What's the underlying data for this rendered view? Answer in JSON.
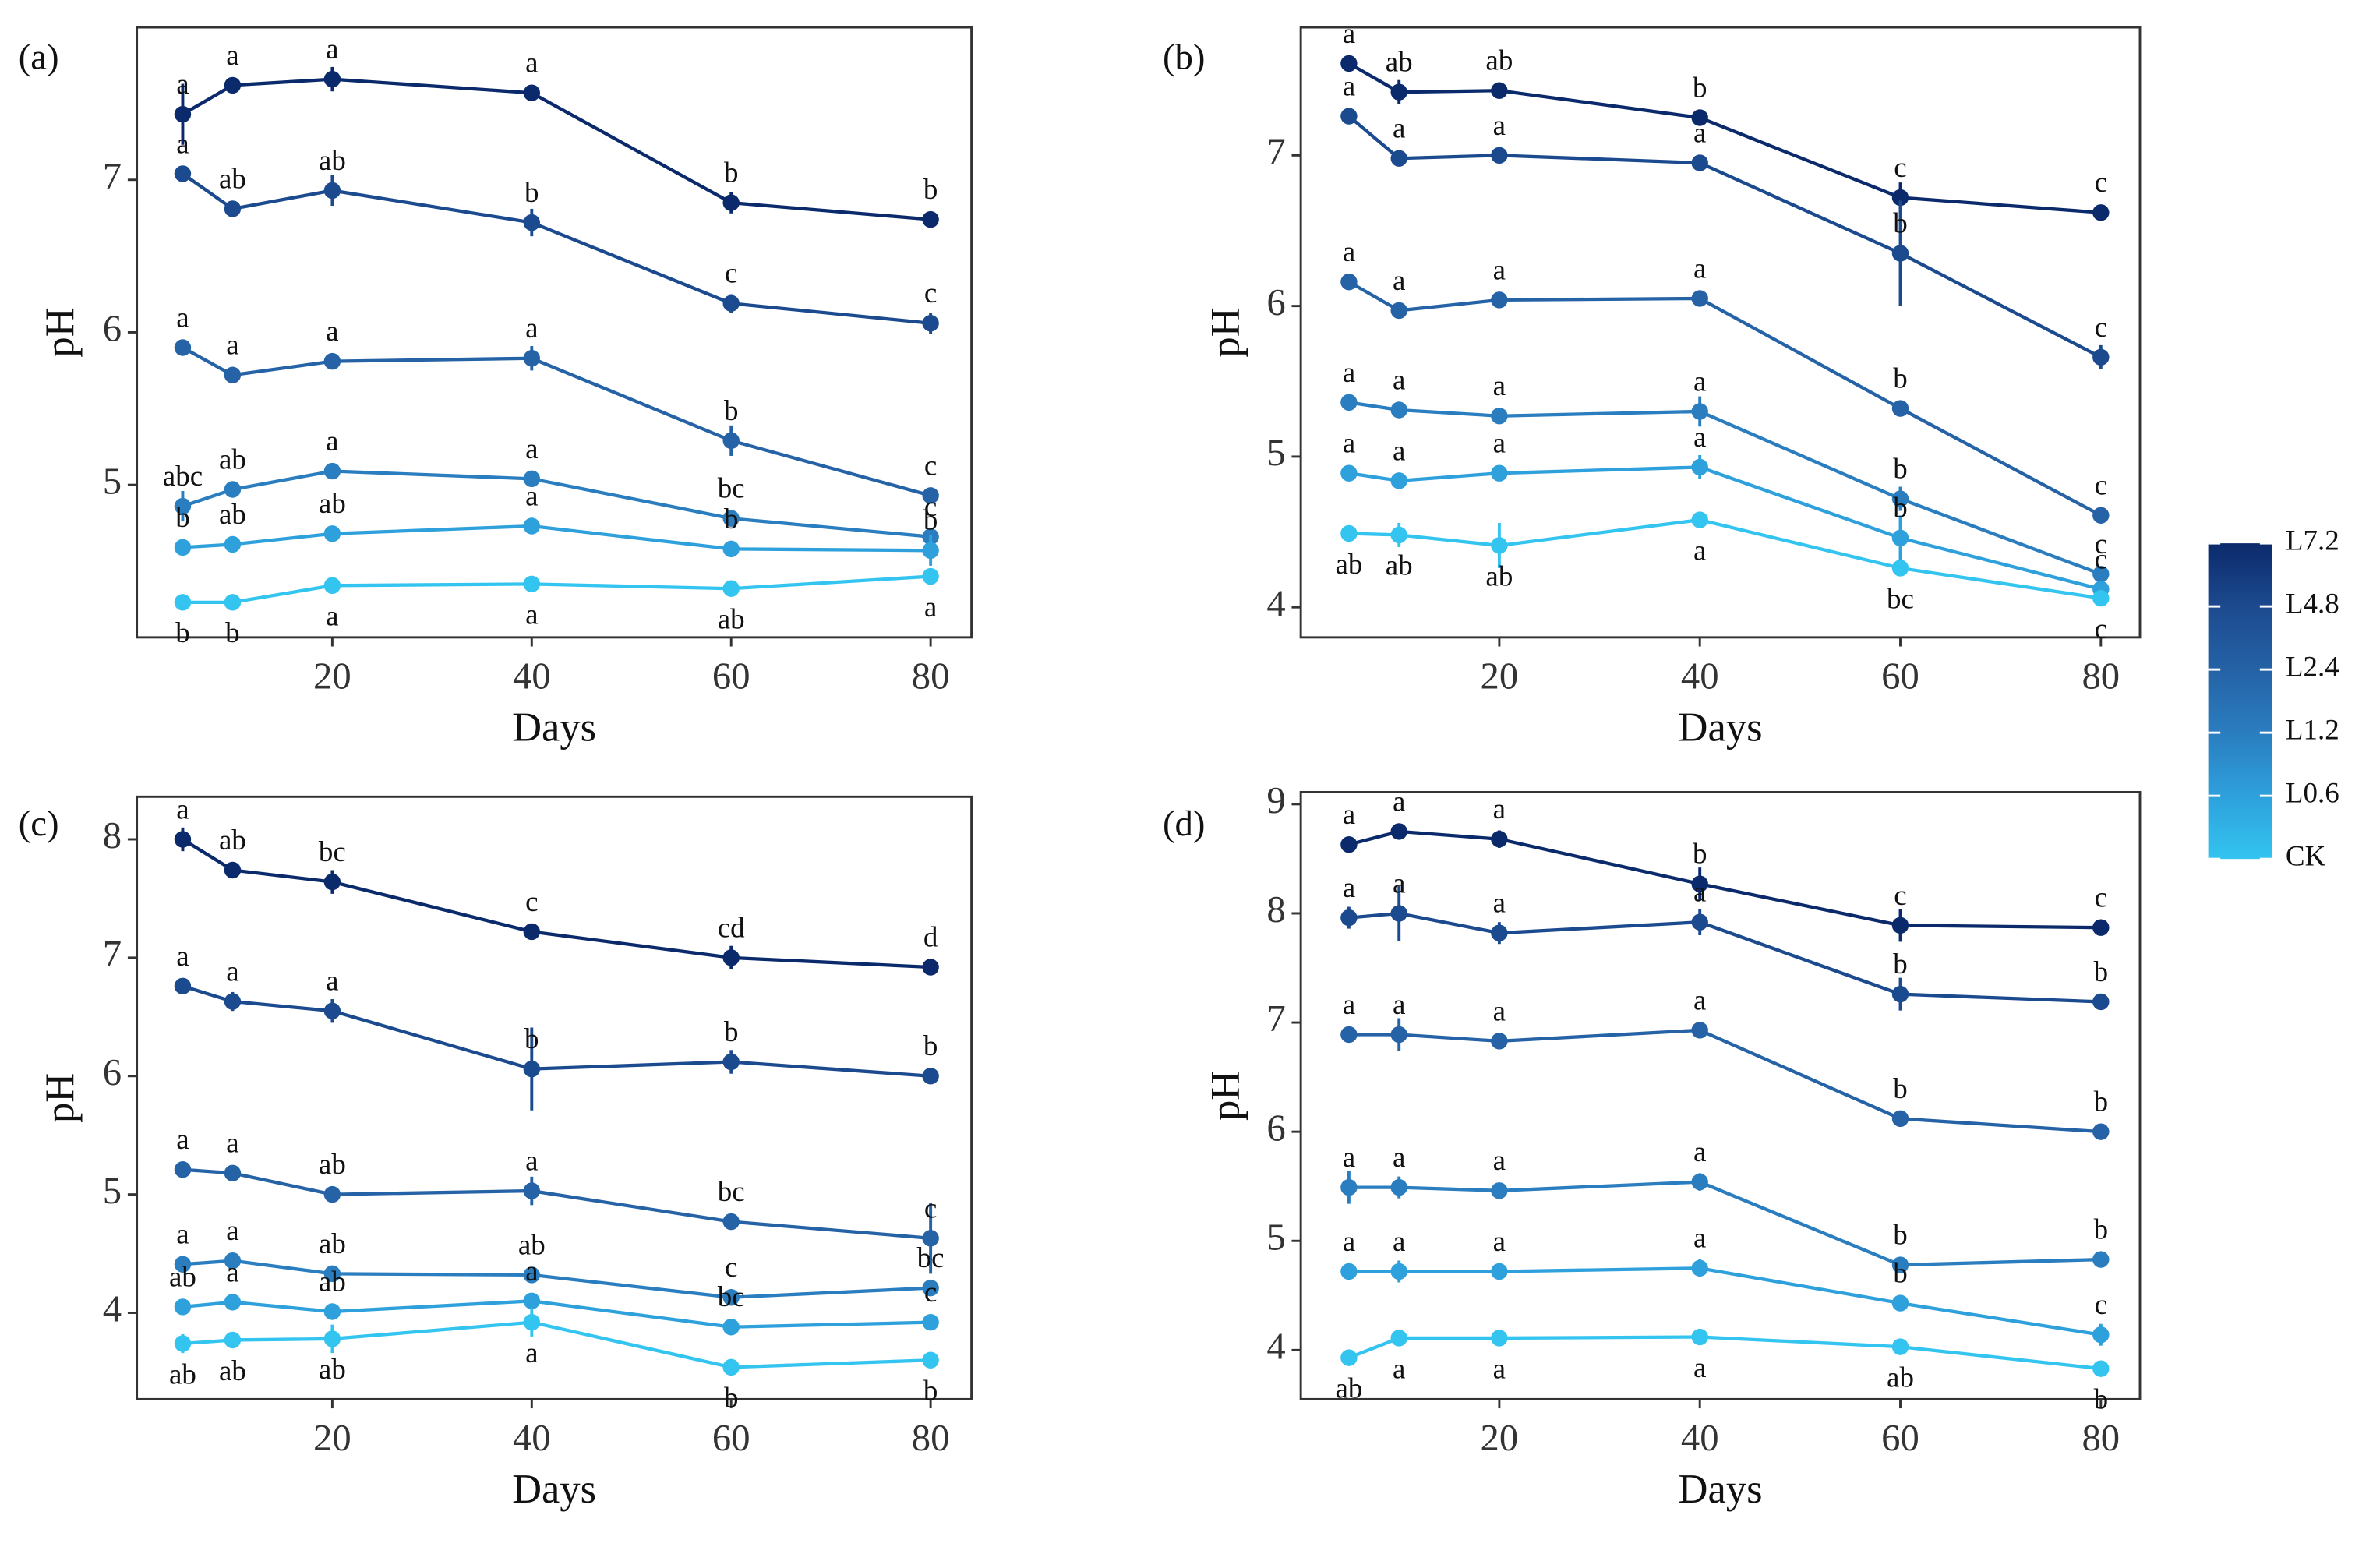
{
  "chart_data": [
    {
      "type": "line",
      "panel_label": "(a)",
      "xlabel": "Days",
      "ylabel": "pH",
      "x": [
        5,
        10,
        20,
        40,
        60,
        80
      ],
      "xlim": [
        0.4,
        84.1
      ],
      "xticks": [
        20,
        40,
        60,
        80
      ],
      "ylim": [
        4.0,
        8.0
      ],
      "yticks": [
        5,
        6,
        7
      ],
      "series": [
        {
          "name": "L7.2",
          "color": "#0b2a6b",
          "values": [
            7.43,
            7.62,
            7.66,
            7.57,
            6.85,
            6.74
          ],
          "errors": [
            0.2,
            0.03,
            0.08,
            0.03,
            0.07,
            0.02
          ],
          "letters": [
            "a",
            "a",
            "a",
            "a",
            "b",
            "b"
          ]
        },
        {
          "name": "L4.8",
          "color": "#1c4a8f",
          "values": [
            7.04,
            6.81,
            6.93,
            6.72,
            6.19,
            6.06
          ],
          "errors": [
            0.03,
            0.03,
            0.1,
            0.09,
            0.06,
            0.07
          ],
          "letters": [
            "a",
            "ab",
            "ab",
            "b",
            "c",
            "c"
          ]
        },
        {
          "name": "L2.4",
          "color": "#2562a6",
          "values": [
            5.9,
            5.72,
            5.81,
            5.83,
            5.29,
            4.93
          ],
          "errors": [
            0.03,
            0.03,
            0.03,
            0.08,
            0.1,
            0.03
          ],
          "letters": [
            "a",
            "a",
            "a",
            "a",
            "b",
            "c"
          ]
        },
        {
          "name": "L1.2",
          "color": "#2a7dbf",
          "values": [
            4.86,
            4.97,
            5.09,
            5.04,
            4.78,
            4.66
          ],
          "errors": [
            0.1,
            0.03,
            0.05,
            0.03,
            0.03,
            0.05
          ],
          "letters": [
            "abc",
            "ab",
            "a",
            "a",
            "bc",
            "c"
          ]
        },
        {
          "name": "L0.6",
          "color": "#2ea0dc",
          "values": [
            4.59,
            4.61,
            4.68,
            4.73,
            4.58,
            4.57
          ],
          "errors": [
            0.03,
            0.03,
            0.03,
            0.03,
            0.03,
            0.1
          ],
          "letters": [
            "b",
            "ab",
            "ab",
            "a",
            "b",
            "b"
          ]
        },
        {
          "name": "CK",
          "color": "#33c4f0",
          "values": [
            4.23,
            4.23,
            4.34,
            4.35,
            4.32,
            4.4
          ],
          "errors": [
            0.03,
            0.03,
            0.03,
            0.03,
            0.03,
            0.03
          ],
          "letters": [
            "b",
            "b",
            "a",
            "a",
            "ab",
            "a"
          ]
        }
      ]
    },
    {
      "type": "line",
      "panel_label": "(b)",
      "xlabel": "Days",
      "ylabel": "pH",
      "x": [
        5,
        10,
        20,
        40,
        60,
        80
      ],
      "xlim": [
        0.2,
        83.9
      ],
      "xticks": [
        20,
        40,
        60,
        80
      ],
      "ylim": [
        3.8,
        7.85
      ],
      "yticks": [
        4,
        5,
        6,
        7
      ],
      "series": [
        {
          "name": "L7.2",
          "color": "#0b2a6b",
          "values": [
            7.61,
            7.42,
            7.43,
            7.25,
            6.72,
            6.62
          ],
          "errors": [
            0.03,
            0.08,
            0.05,
            0.03,
            0.1,
            0.05
          ],
          "letters": [
            "a",
            "ab",
            "ab",
            "b",
            "c",
            "c"
          ]
        },
        {
          "name": "L4.8",
          "color": "#1c4a8f",
          "values": [
            7.26,
            6.98,
            7.0,
            6.95,
            6.35,
            5.66
          ],
          "errors": [
            0.03,
            0.03,
            0.03,
            0.03,
            0.35,
            0.08
          ],
          "letters": [
            "a",
            "a",
            "a",
            "a",
            "b",
            "c"
          ]
        },
        {
          "name": "L2.4",
          "color": "#2562a6",
          "values": [
            6.16,
            5.97,
            6.04,
            6.05,
            5.32,
            4.61
          ],
          "errors": [
            0.03,
            0.03,
            0.03,
            0.03,
            0.03,
            0.03
          ],
          "letters": [
            "a",
            "a",
            "a",
            "a",
            "b",
            "c"
          ]
        },
        {
          "name": "L1.2",
          "color": "#2a7dbf",
          "values": [
            5.36,
            5.31,
            5.27,
            5.3,
            4.72,
            4.22
          ],
          "errors": [
            0.05,
            0.03,
            0.03,
            0.1,
            0.08,
            0.03
          ],
          "letters": [
            "a",
            "a",
            "a",
            "a",
            "b",
            "c"
          ]
        },
        {
          "name": "L0.6",
          "color": "#2ea0dc",
          "values": [
            4.89,
            4.84,
            4.89,
            4.93,
            4.46,
            4.12
          ],
          "errors": [
            0.03,
            0.03,
            0.03,
            0.08,
            0.15,
            0.03
          ],
          "letters": [
            "a",
            "a",
            "a",
            "a",
            "b",
            "c"
          ]
        },
        {
          "name": "CK",
          "color": "#33c4f0",
          "values": [
            4.49,
            4.48,
            4.41,
            4.58,
            4.26,
            4.06
          ],
          "errors": [
            0.03,
            0.08,
            0.15,
            0.03,
            0.03,
            0.03
          ],
          "letters": [
            "ab",
            "ab",
            "ab",
            "a",
            "bc",
            "c"
          ]
        }
      ]
    },
    {
      "type": "line",
      "panel_label": "(c)",
      "xlabel": "Days",
      "ylabel": "pH",
      "x": [
        5,
        10,
        20,
        40,
        60,
        80
      ],
      "xlim": [
        0.4,
        84.1
      ],
      "xticks": [
        20,
        40,
        60,
        80
      ],
      "ylim": [
        3.27,
        8.36
      ],
      "yticks": [
        4,
        5,
        6,
        7,
        8
      ],
      "series": [
        {
          "name": "L7.2",
          "color": "#0b2a6b",
          "values": [
            8.0,
            7.74,
            7.64,
            7.22,
            7.0,
            6.92
          ],
          "errors": [
            0.1,
            0.03,
            0.1,
            0.03,
            0.1,
            0.03
          ],
          "letters": [
            "a",
            "ab",
            "bc",
            "c",
            "cd",
            "d"
          ]
        },
        {
          "name": "L4.8",
          "color": "#1c4a8f",
          "values": [
            6.76,
            6.63,
            6.55,
            6.06,
            6.12,
            6.0
          ],
          "errors": [
            0.03,
            0.08,
            0.1,
            0.35,
            0.1,
            0.03
          ],
          "letters": [
            "a",
            "a",
            "a",
            "b",
            "b",
            "b"
          ]
        },
        {
          "name": "L2.4",
          "color": "#2562a6",
          "values": [
            5.21,
            5.18,
            5.0,
            5.03,
            4.77,
            4.63
          ],
          "errors": [
            0.05,
            0.05,
            0.03,
            0.12,
            0.05,
            0.3
          ],
          "letters": [
            "a",
            "a",
            "ab",
            "a",
            "bc",
            "c"
          ]
        },
        {
          "name": "L1.2",
          "color": "#2a7dbf",
          "values": [
            4.41,
            4.44,
            4.33,
            4.32,
            4.13,
            4.21
          ],
          "errors": [
            0.03,
            0.03,
            0.03,
            0.05,
            0.03,
            0.03
          ],
          "letters": [
            "a",
            "a",
            "ab",
            "ab",
            "c",
            "bc"
          ]
        },
        {
          "name": "L0.6",
          "color": "#2ea0dc",
          "values": [
            4.05,
            4.09,
            4.01,
            4.1,
            3.88,
            3.92
          ],
          "errors": [
            0.03,
            0.03,
            0.03,
            0.03,
            0.03,
            0.03
          ],
          "letters": [
            "ab",
            "a",
            "ab",
            "a",
            "bc",
            "c"
          ]
        },
        {
          "name": "CK",
          "color": "#33c4f0",
          "values": [
            3.74,
            3.77,
            3.78,
            3.92,
            3.54,
            3.6
          ],
          "errors": [
            0.08,
            0.05,
            0.12,
            0.12,
            0.03,
            0.05
          ],
          "letters": [
            "ab",
            "ab",
            "ab",
            "a",
            "b",
            "b"
          ]
        }
      ]
    },
    {
      "type": "line",
      "panel_label": "(d)",
      "xlabel": "Days",
      "ylabel": "pH",
      "x": [
        5,
        10,
        20,
        40,
        60,
        80
      ],
      "xlim": [
        0.2,
        83.9
      ],
      "xticks": [
        20,
        40,
        60,
        80
      ],
      "ylim": [
        3.55,
        9.11
      ],
      "yticks": [
        4,
        5,
        6,
        7,
        8,
        9
      ],
      "series": [
        {
          "name": "L7.2",
          "color": "#0b2a6b",
          "values": [
            8.63,
            8.75,
            8.68,
            8.27,
            7.89,
            7.87
          ],
          "errors": [
            0.03,
            0.03,
            0.08,
            0.15,
            0.15,
            0.03
          ],
          "letters": [
            "a",
            "a",
            "a",
            "b",
            "c",
            "c"
          ]
        },
        {
          "name": "L4.8",
          "color": "#1c4a8f",
          "values": [
            7.96,
            8.0,
            7.82,
            7.92,
            7.26,
            7.19
          ],
          "errors": [
            0.1,
            0.25,
            0.1,
            0.12,
            0.15,
            0.05
          ],
          "letters": [
            "a",
            "a",
            "a",
            "a",
            "b",
            "b"
          ]
        },
        {
          "name": "L2.4",
          "color": "#2562a6",
          "values": [
            6.89,
            6.89,
            6.83,
            6.93,
            6.12,
            6.0
          ],
          "errors": [
            0.05,
            0.15,
            0.05,
            0.03,
            0.03,
            0.03
          ],
          "letters": [
            "a",
            "a",
            "a",
            "a",
            "b",
            "b"
          ]
        },
        {
          "name": "L1.2",
          "color": "#2a7dbf",
          "values": [
            5.49,
            5.49,
            5.46,
            5.54,
            4.78,
            4.83
          ],
          "errors": [
            0.15,
            0.1,
            0.03,
            0.08,
            0.03,
            0.03
          ],
          "letters": [
            "a",
            "a",
            "a",
            "a",
            "b",
            "b"
          ]
        },
        {
          "name": "L0.6",
          "color": "#2ea0dc",
          "values": [
            4.72,
            4.72,
            4.72,
            4.75,
            4.43,
            4.14
          ],
          "errors": [
            0.03,
            0.1,
            0.03,
            0.08,
            0.03,
            0.1
          ],
          "letters": [
            "a",
            "a",
            "a",
            "a",
            "b",
            "c"
          ]
        },
        {
          "name": "CK",
          "color": "#33c4f0",
          "values": [
            3.93,
            4.11,
            4.11,
            4.12,
            4.03,
            3.83
          ],
          "errors": [
            0.03,
            0.03,
            0.05,
            0.03,
            0.03,
            0.03
          ],
          "letters": [
            "ab",
            "a",
            "a",
            "a",
            "ab",
            "b"
          ]
        }
      ]
    }
  ]
}
